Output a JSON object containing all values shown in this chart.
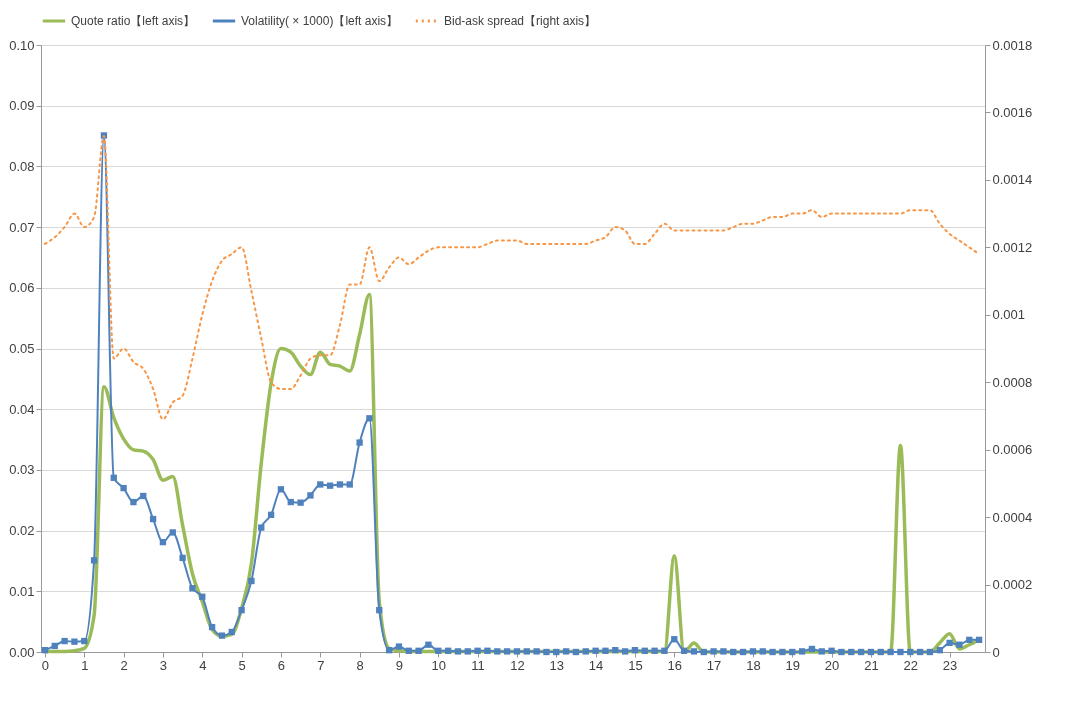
{
  "chart_data": {
    "type": "line",
    "legend": "top",
    "grid": "y",
    "x": [
      0,
      0.25,
      0.5,
      0.75,
      1,
      1.25,
      1.5,
      1.75,
      2,
      2.25,
      2.5,
      2.75,
      3,
      3.25,
      3.5,
      3.75,
      4,
      4.25,
      4.5,
      4.75,
      5,
      5.25,
      5.5,
      5.75,
      6,
      6.25,
      6.5,
      6.75,
      7,
      7.25,
      7.5,
      7.75,
      8,
      8.25,
      8.5,
      8.75,
      9,
      9.25,
      9.5,
      9.75,
      10,
      10.25,
      10.5,
      10.75,
      11,
      11.25,
      11.5,
      11.75,
      12,
      12.25,
      12.5,
      12.75,
      13,
      13.25,
      13.5,
      13.75,
      14,
      14.25,
      14.5,
      14.75,
      15,
      15.25,
      15.5,
      15.75,
      16,
      16.25,
      16.5,
      16.75,
      17,
      17.25,
      17.5,
      17.75,
      18,
      18.25,
      18.5,
      18.75,
      19,
      19.25,
      19.5,
      19.75,
      20,
      20.25,
      20.5,
      20.75,
      21,
      21.25,
      21.5,
      21.75,
      22,
      22.25,
      22.5,
      22.75,
      23,
      23.25,
      23.5,
      23.75
    ],
    "xlim": [
      -0.1,
      23.9
    ],
    "xticks": [
      0,
      1,
      2,
      3,
      4,
      5,
      6,
      7,
      8,
      9,
      10,
      11,
      12,
      13,
      14,
      15,
      16,
      17,
      18,
      19,
      20,
      21,
      22,
      23
    ],
    "ylim": [
      0,
      0.1
    ],
    "yticks": [
      {
        "value": 0,
        "label": "0.00"
      },
      {
        "value": 0.01,
        "label": "0.01"
      },
      {
        "value": 0.02,
        "label": "0.02"
      },
      {
        "value": 0.03,
        "label": "0.03"
      },
      {
        "value": 0.04,
        "label": "0.04"
      },
      {
        "value": 0.05,
        "label": "0.05"
      },
      {
        "value": 0.06,
        "label": "0.06"
      },
      {
        "value": 0.07,
        "label": "0.07"
      },
      {
        "value": 0.08,
        "label": "0.08"
      },
      {
        "value": 0.09,
        "label": "0.09"
      },
      {
        "value": 0.1,
        "label": "0.10"
      }
    ],
    "y2lim": [
      0,
      0.0018
    ],
    "y2ticks": [
      0,
      0.0002,
      0.0004,
      0.0006,
      0.0008,
      0.001,
      0.0012,
      0.0014,
      0.0016,
      0.0018
    ],
    "series": [
      {
        "name": "Quote ratio【left axis】",
        "color": "#9bbb59",
        "marker": "none",
        "line_style": "solid",
        "values": [
          0.0001,
          0.0001,
          0.0001,
          0.0002,
          0.0006,
          0.006,
          0.0437,
          0.0386,
          0.0351,
          0.0333,
          0.0331,
          0.0317,
          0.0283,
          0.0289,
          0.0209,
          0.0129,
          0.0083,
          0.0037,
          0.0026,
          0.0029,
          0.0072,
          0.0146,
          0.0311,
          0.0443,
          0.05,
          0.0494,
          0.0471,
          0.0457,
          0.0494,
          0.0474,
          0.0471,
          0.0463,
          0.0523,
          0.0589,
          0.0083,
          0.0006,
          0.0002,
          0.0001,
          0.0001,
          0.0001,
          0.0001,
          0.0001,
          0.0001,
          0.0001,
          0.0001,
          0.0001,
          0.0001,
          0.0001,
          0.0001,
          0.0001,
          0.0001,
          0.0001,
          0.0001,
          0.0001,
          0.0001,
          0.0001,
          0.0001,
          0.0001,
          0.0001,
          0.0001,
          0.0001,
          0.0001,
          0.0001,
          0.0001,
          0.0158,
          0,
          0.0015,
          0,
          0,
          0,
          0,
          0,
          0,
          0,
          0,
          0,
          0,
          0,
          0,
          0,
          0,
          0,
          0,
          0,
          0,
          0,
          0,
          0.034,
          0,
          0,
          0,
          0.0015,
          0.003,
          0.0005,
          0.0012,
          0.002
        ]
      },
      {
        "name": "Volatility( × 1000)【left axis】",
        "color": "#4f81bd",
        "marker": "square",
        "line_style": "solid",
        "values": [
          0.0003,
          0.001,
          0.0018,
          0.0017,
          0.0018,
          0.0151,
          0.0851,
          0.0287,
          0.027,
          0.0247,
          0.0257,
          0.0219,
          0.0181,
          0.0197,
          0.0155,
          0.0105,
          0.0091,
          0.0041,
          0.0027,
          0.0033,
          0.0069,
          0.0117,
          0.0205,
          0.0226,
          0.0268,
          0.0247,
          0.0246,
          0.0258,
          0.0276,
          0.0274,
          0.0276,
          0.0276,
          0.0345,
          0.0385,
          0.0069,
          0.0003,
          0.0009,
          0.0002,
          0.0002,
          0.0012,
          0.0002,
          0.0002,
          0.0001,
          0.0001,
          0.0002,
          0.0002,
          0.0001,
          0.0001,
          0.0001,
          0.0001,
          0.0001,
          0,
          0,
          0.0001,
          0,
          0.0001,
          0.0002,
          0.0002,
          0.0003,
          0.0001,
          0.0003,
          0.0002,
          0.0002,
          0.0002,
          0.0021,
          0.0002,
          0.0001,
          0,
          0.0001,
          0.0001,
          0,
          0,
          0.0001,
          0.0001,
          0,
          0,
          0,
          0.0001,
          0.0005,
          0.0001,
          0.0002,
          0,
          0,
          0,
          0,
          0,
          0,
          0,
          0,
          0,
          0,
          0.0003,
          0.0015,
          0.0012,
          0.002,
          0.002
        ]
      },
      {
        "name": "Bid-ask spread【right axis】",
        "color": "#f79646",
        "marker": "none",
        "line_style": "dotted",
        "axis": "y2",
        "values": [
          0.00121,
          0.00123,
          0.00126,
          0.0013,
          0.00126,
          0.00129,
          0.00153,
          0.00087,
          0.0009,
          0.00086,
          0.00084,
          0.00078,
          0.00069,
          0.00074,
          0.00076,
          0.00087,
          0.001,
          0.0011,
          0.00116,
          0.00118,
          0.0012,
          0.00107,
          0.00093,
          0.0008,
          0.00078,
          0.00078,
          0.00082,
          0.00087,
          0.00088,
          0.00088,
          0.00097,
          0.00109,
          0.00109,
          0.0012,
          0.0011,
          0.00114,
          0.00117,
          0.00115,
          0.00117,
          0.00119,
          0.0012,
          0.0012,
          0.0012,
          0.0012,
          0.0012,
          0.00121,
          0.00122,
          0.00122,
          0.00122,
          0.00121,
          0.00121,
          0.00121,
          0.00121,
          0.00121,
          0.00121,
          0.00121,
          0.00122,
          0.00123,
          0.00126,
          0.00125,
          0.00121,
          0.00121,
          0.00124,
          0.00127,
          0.00125,
          0.00125,
          0.00125,
          0.00125,
          0.00125,
          0.00125,
          0.00126,
          0.00127,
          0.00127,
          0.00128,
          0.00129,
          0.00129,
          0.0013,
          0.0013,
          0.00131,
          0.00129,
          0.0013,
          0.0013,
          0.0013,
          0.0013,
          0.0013,
          0.0013,
          0.0013,
          0.0013,
          0.00131,
          0.00131,
          0.00131,
          0.00127,
          0.00124,
          0.00122,
          0.0012,
          0.00118
        ]
      }
    ]
  }
}
